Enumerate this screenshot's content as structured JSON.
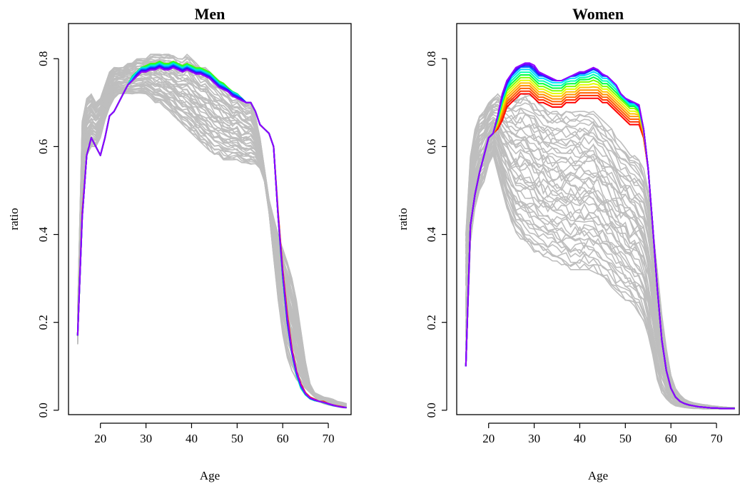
{
  "chart_data": [
    {
      "type": "line",
      "title": "Men",
      "xlabel": "Age",
      "ylabel": "ratio",
      "xlim": [
        13,
        75
      ],
      "ylim": [
        -0.01,
        0.88
      ],
      "xticks": [
        20,
        30,
        40,
        50,
        60,
        70
      ],
      "yticks": [
        0.0,
        0.2,
        0.4,
        0.6,
        0.8
      ],
      "background_color": "#bebebe",
      "highlight_palette": [
        "#ff0000",
        "#ff8000",
        "#ffd000",
        "#c0ff00",
        "#40ff00",
        "#00ff80",
        "#00d0ff",
        "#0060ff",
        "#4000ff",
        "#9000ff"
      ],
      "x": [
        15,
        16,
        17,
        18,
        19,
        20,
        21,
        22,
        23,
        24,
        25,
        26,
        27,
        28,
        29,
        30,
        31,
        32,
        33,
        34,
        35,
        36,
        37,
        38,
        39,
        40,
        41,
        42,
        43,
        44,
        45,
        46,
        47,
        48,
        49,
        50,
        51,
        52,
        53,
        54,
        55,
        56,
        57,
        58,
        59,
        60,
        61,
        62,
        63,
        64,
        65,
        66,
        67,
        68,
        69,
        70,
        71,
        72,
        73,
        74
      ],
      "background_series": {
        "upper": [
          0.22,
          0.66,
          0.71,
          0.72,
          0.7,
          0.71,
          0.74,
          0.77,
          0.78,
          0.78,
          0.78,
          0.79,
          0.79,
          0.8,
          0.8,
          0.8,
          0.81,
          0.81,
          0.81,
          0.81,
          0.81,
          0.81,
          0.8,
          0.8,
          0.81,
          0.8,
          0.79,
          0.78,
          0.78,
          0.77,
          0.76,
          0.75,
          0.74,
          0.73,
          0.72,
          0.72,
          0.71,
          0.7,
          0.7,
          0.67,
          0.62,
          0.55,
          0.48,
          0.44,
          0.4,
          0.37,
          0.34,
          0.3,
          0.25,
          0.18,
          0.11,
          0.06,
          0.04,
          0.035,
          0.03,
          0.028,
          0.025,
          0.02,
          0.018,
          0.015
        ],
        "lower": [
          0.15,
          0.48,
          0.58,
          0.6,
          0.6,
          0.62,
          0.66,
          0.69,
          0.71,
          0.72,
          0.72,
          0.72,
          0.72,
          0.72,
          0.72,
          0.72,
          0.71,
          0.7,
          0.7,
          0.69,
          0.68,
          0.67,
          0.66,
          0.65,
          0.64,
          0.63,
          0.62,
          0.61,
          0.6,
          0.59,
          0.58,
          0.58,
          0.57,
          0.57,
          0.57,
          0.57,
          0.56,
          0.56,
          0.56,
          0.56,
          0.55,
          0.52,
          0.45,
          0.35,
          0.25,
          0.17,
          0.12,
          0.09,
          0.07,
          0.06,
          0.05,
          0.04,
          0.03,
          0.02,
          0.015,
          0.012,
          0.01,
          0.008,
          0.006,
          0.005
        ]
      },
      "highlight_series": [
        {
          "values": [
            0.17,
            0.45,
            0.58,
            0.62,
            0.6,
            0.58,
            0.62,
            0.67,
            0.68,
            0.7,
            0.72,
            0.74,
            0.75,
            0.76,
            0.77,
            0.77,
            0.78,
            0.78,
            0.78,
            0.78,
            0.78,
            0.79,
            0.78,
            0.78,
            0.78,
            0.78,
            0.77,
            0.77,
            0.77,
            0.76,
            0.75,
            0.74,
            0.74,
            0.73,
            0.72,
            0.72,
            0.71,
            0.7,
            0.7,
            0.68,
            0.65,
            0.64,
            0.63,
            0.6,
            0.45,
            0.32,
            0.22,
            0.14,
            0.09,
            0.06,
            0.04,
            0.03,
            0.025,
            0.02,
            0.02,
            0.015,
            0.012,
            0.01,
            0.008,
            0.006
          ]
        },
        {
          "values": [
            0.17,
            0.44,
            0.58,
            0.62,
            0.6,
            0.58,
            0.62,
            0.67,
            0.68,
            0.7,
            0.72,
            0.74,
            0.76,
            0.77,
            0.78,
            0.78,
            0.785,
            0.785,
            0.79,
            0.785,
            0.785,
            0.79,
            0.785,
            0.78,
            0.785,
            0.78,
            0.775,
            0.775,
            0.77,
            0.765,
            0.755,
            0.745,
            0.74,
            0.73,
            0.725,
            0.72,
            0.71,
            0.7,
            0.7,
            0.68,
            0.65,
            0.64,
            0.63,
            0.6,
            0.44,
            0.31,
            0.21,
            0.13,
            0.085,
            0.055,
            0.038,
            0.028,
            0.023,
            0.02,
            0.018,
            0.014,
            0.011,
            0.009,
            0.007,
            0.006
          ]
        },
        {
          "values": [
            0.17,
            0.44,
            0.58,
            0.62,
            0.6,
            0.58,
            0.62,
            0.67,
            0.68,
            0.7,
            0.72,
            0.74,
            0.76,
            0.77,
            0.78,
            0.785,
            0.79,
            0.79,
            0.795,
            0.79,
            0.79,
            0.795,
            0.79,
            0.785,
            0.79,
            0.785,
            0.78,
            0.78,
            0.775,
            0.77,
            0.76,
            0.75,
            0.745,
            0.735,
            0.725,
            0.72,
            0.71,
            0.7,
            0.7,
            0.68,
            0.65,
            0.64,
            0.63,
            0.6,
            0.44,
            0.3,
            0.2,
            0.13,
            0.08,
            0.05,
            0.035,
            0.026,
            0.022,
            0.02,
            0.017,
            0.014,
            0.011,
            0.009,
            0.007,
            0.006
          ]
        },
        {
          "values": [
            0.17,
            0.44,
            0.58,
            0.62,
            0.6,
            0.58,
            0.62,
            0.67,
            0.68,
            0.7,
            0.72,
            0.74,
            0.76,
            0.77,
            0.78,
            0.78,
            0.785,
            0.785,
            0.79,
            0.785,
            0.785,
            0.79,
            0.785,
            0.78,
            0.785,
            0.78,
            0.775,
            0.775,
            0.77,
            0.765,
            0.755,
            0.745,
            0.74,
            0.73,
            0.725,
            0.72,
            0.71,
            0.7,
            0.7,
            0.68,
            0.65,
            0.64,
            0.63,
            0.6,
            0.44,
            0.3,
            0.2,
            0.13,
            0.08,
            0.05,
            0.035,
            0.026,
            0.022,
            0.02,
            0.017,
            0.014,
            0.011,
            0.009,
            0.007,
            0.006
          ]
        },
        {
          "values": [
            0.17,
            0.44,
            0.58,
            0.62,
            0.6,
            0.58,
            0.62,
            0.67,
            0.68,
            0.7,
            0.72,
            0.74,
            0.75,
            0.765,
            0.775,
            0.775,
            0.78,
            0.78,
            0.785,
            0.78,
            0.78,
            0.785,
            0.78,
            0.775,
            0.78,
            0.775,
            0.77,
            0.77,
            0.765,
            0.76,
            0.75,
            0.74,
            0.735,
            0.73,
            0.72,
            0.715,
            0.71,
            0.7,
            0.7,
            0.68,
            0.65,
            0.64,
            0.63,
            0.6,
            0.44,
            0.31,
            0.2,
            0.13,
            0.085,
            0.055,
            0.037,
            0.027,
            0.023,
            0.02,
            0.018,
            0.014,
            0.011,
            0.009,
            0.007,
            0.006
          ]
        },
        {
          "values": [
            0.17,
            0.44,
            0.58,
            0.62,
            0.6,
            0.58,
            0.62,
            0.67,
            0.68,
            0.7,
            0.72,
            0.74,
            0.75,
            0.76,
            0.77,
            0.77,
            0.775,
            0.775,
            0.78,
            0.775,
            0.775,
            0.78,
            0.775,
            0.77,
            0.775,
            0.77,
            0.765,
            0.765,
            0.76,
            0.755,
            0.745,
            0.735,
            0.73,
            0.725,
            0.715,
            0.71,
            0.705,
            0.7,
            0.7,
            0.68,
            0.65,
            0.64,
            0.63,
            0.6,
            0.44,
            0.31,
            0.21,
            0.135,
            0.088,
            0.057,
            0.038,
            0.028,
            0.024,
            0.02,
            0.018,
            0.015,
            0.012,
            0.009,
            0.007,
            0.006
          ]
        }
      ]
    },
    {
      "type": "line",
      "title": "Women",
      "xlabel": "Age",
      "ylabel": "ratio",
      "xlim": [
        13,
        75
      ],
      "ylim": [
        -0.01,
        0.88
      ],
      "xticks": [
        20,
        30,
        40,
        50,
        60,
        70
      ],
      "yticks": [
        0.0,
        0.2,
        0.4,
        0.6,
        0.8
      ],
      "background_color": "#bebebe",
      "highlight_palette": [
        "#ff0000",
        "#ff3000",
        "#ff6000",
        "#ff9000",
        "#ffc000",
        "#e0ff00",
        "#80ff00",
        "#00ff40",
        "#00ffb0",
        "#00e0ff",
        "#0080ff",
        "#2020ff",
        "#6000ff",
        "#9000ff"
      ],
      "x": [
        15,
        16,
        17,
        18,
        19,
        20,
        21,
        22,
        23,
        24,
        25,
        26,
        27,
        28,
        29,
        30,
        31,
        32,
        33,
        34,
        35,
        36,
        37,
        38,
        39,
        40,
        41,
        42,
        43,
        44,
        45,
        46,
        47,
        48,
        49,
        50,
        51,
        52,
        53,
        54,
        55,
        56,
        57,
        58,
        59,
        60,
        61,
        62,
        63,
        64,
        65,
        66,
        67,
        68,
        69,
        70,
        71,
        72,
        73,
        74
      ],
      "background_series": {
        "upper": [
          0.4,
          0.58,
          0.64,
          0.67,
          0.68,
          0.7,
          0.71,
          0.72,
          0.71,
          0.71,
          0.71,
          0.71,
          0.72,
          0.72,
          0.72,
          0.71,
          0.7,
          0.69,
          0.68,
          0.68,
          0.68,
          0.68,
          0.68,
          0.68,
          0.68,
          0.68,
          0.68,
          0.68,
          0.68,
          0.67,
          0.66,
          0.65,
          0.64,
          0.62,
          0.61,
          0.6,
          0.59,
          0.58,
          0.57,
          0.55,
          0.5,
          0.42,
          0.32,
          0.22,
          0.14,
          0.08,
          0.05,
          0.035,
          0.025,
          0.02,
          0.017,
          0.015,
          0.013,
          0.012,
          0.01,
          0.009,
          0.008,
          0.007,
          0.006,
          0.006
        ],
        "lower": [
          0.1,
          0.38,
          0.46,
          0.5,
          0.52,
          0.56,
          0.58,
          0.54,
          0.5,
          0.46,
          0.43,
          0.4,
          0.39,
          0.38,
          0.37,
          0.36,
          0.355,
          0.35,
          0.345,
          0.34,
          0.335,
          0.33,
          0.33,
          0.32,
          0.32,
          0.32,
          0.32,
          0.32,
          0.315,
          0.31,
          0.3,
          0.29,
          0.28,
          0.27,
          0.26,
          0.25,
          0.24,
          0.23,
          0.22,
          0.2,
          0.17,
          0.12,
          0.07,
          0.04,
          0.025,
          0.015,
          0.01,
          0.008,
          0.006,
          0.005,
          0.004,
          0.004,
          0.003,
          0.003,
          0.003,
          0.003,
          0.003,
          0.003,
          0.003,
          0.003
        ]
      },
      "highlight_series": [
        {
          "values": [
            0.1,
            0.42,
            0.49,
            0.54,
            0.58,
            0.62,
            0.63,
            0.64,
            0.66,
            0.69,
            0.7,
            0.71,
            0.72,
            0.72,
            0.72,
            0.71,
            0.7,
            0.7,
            0.695,
            0.69,
            0.69,
            0.69,
            0.7,
            0.7,
            0.7,
            0.71,
            0.71,
            0.71,
            0.71,
            0.71,
            0.7,
            0.7,
            0.69,
            0.68,
            0.67,
            0.66,
            0.65,
            0.65,
            0.65,
            0.62,
            0.55,
            0.42,
            0.28,
            0.16,
            0.09,
            0.05,
            0.03,
            0.02,
            0.015,
            0.012,
            0.01,
            0.008,
            0.007,
            0.006,
            0.005,
            0.005,
            0.004,
            0.004,
            0.004,
            0.004
          ]
        },
        {
          "values": [
            0.1,
            0.42,
            0.49,
            0.54,
            0.58,
            0.62,
            0.63,
            0.65,
            0.68,
            0.71,
            0.72,
            0.73,
            0.74,
            0.74,
            0.74,
            0.73,
            0.72,
            0.72,
            0.715,
            0.71,
            0.71,
            0.71,
            0.72,
            0.72,
            0.72,
            0.73,
            0.73,
            0.73,
            0.73,
            0.73,
            0.72,
            0.72,
            0.71,
            0.7,
            0.69,
            0.68,
            0.67,
            0.67,
            0.67,
            0.63,
            0.55,
            0.42,
            0.28,
            0.16,
            0.09,
            0.05,
            0.03,
            0.02,
            0.015,
            0.012,
            0.01,
            0.008,
            0.007,
            0.006,
            0.005,
            0.005,
            0.004,
            0.004,
            0.004,
            0.004
          ]
        },
        {
          "values": [
            0.1,
            0.42,
            0.49,
            0.54,
            0.58,
            0.62,
            0.63,
            0.66,
            0.7,
            0.73,
            0.74,
            0.75,
            0.76,
            0.76,
            0.76,
            0.75,
            0.74,
            0.74,
            0.735,
            0.73,
            0.73,
            0.73,
            0.74,
            0.74,
            0.74,
            0.75,
            0.75,
            0.75,
            0.755,
            0.75,
            0.74,
            0.74,
            0.73,
            0.72,
            0.71,
            0.7,
            0.69,
            0.69,
            0.68,
            0.64,
            0.55,
            0.42,
            0.28,
            0.16,
            0.09,
            0.05,
            0.03,
            0.02,
            0.015,
            0.012,
            0.01,
            0.008,
            0.007,
            0.006,
            0.005,
            0.005,
            0.004,
            0.004,
            0.004,
            0.004
          ]
        },
        {
          "values": [
            0.1,
            0.42,
            0.49,
            0.54,
            0.58,
            0.62,
            0.63,
            0.67,
            0.71,
            0.74,
            0.76,
            0.77,
            0.78,
            0.78,
            0.78,
            0.77,
            0.76,
            0.76,
            0.755,
            0.75,
            0.75,
            0.75,
            0.755,
            0.76,
            0.76,
            0.765,
            0.765,
            0.77,
            0.775,
            0.77,
            0.76,
            0.76,
            0.75,
            0.74,
            0.72,
            0.71,
            0.7,
            0.7,
            0.69,
            0.64,
            0.55,
            0.42,
            0.28,
            0.16,
            0.09,
            0.05,
            0.03,
            0.02,
            0.015,
            0.012,
            0.01,
            0.008,
            0.007,
            0.006,
            0.005,
            0.005,
            0.004,
            0.004,
            0.004,
            0.004
          ]
        },
        {
          "values": [
            0.1,
            0.42,
            0.49,
            0.54,
            0.58,
            0.62,
            0.63,
            0.67,
            0.72,
            0.75,
            0.765,
            0.78,
            0.785,
            0.79,
            0.79,
            0.785,
            0.77,
            0.765,
            0.76,
            0.755,
            0.75,
            0.75,
            0.755,
            0.76,
            0.765,
            0.77,
            0.77,
            0.775,
            0.78,
            0.775,
            0.765,
            0.76,
            0.75,
            0.74,
            0.72,
            0.71,
            0.705,
            0.7,
            0.695,
            0.64,
            0.55,
            0.42,
            0.28,
            0.16,
            0.09,
            0.05,
            0.03,
            0.02,
            0.015,
            0.012,
            0.01,
            0.008,
            0.007,
            0.006,
            0.005,
            0.005,
            0.004,
            0.004,
            0.004,
            0.004
          ]
        }
      ]
    }
  ]
}
